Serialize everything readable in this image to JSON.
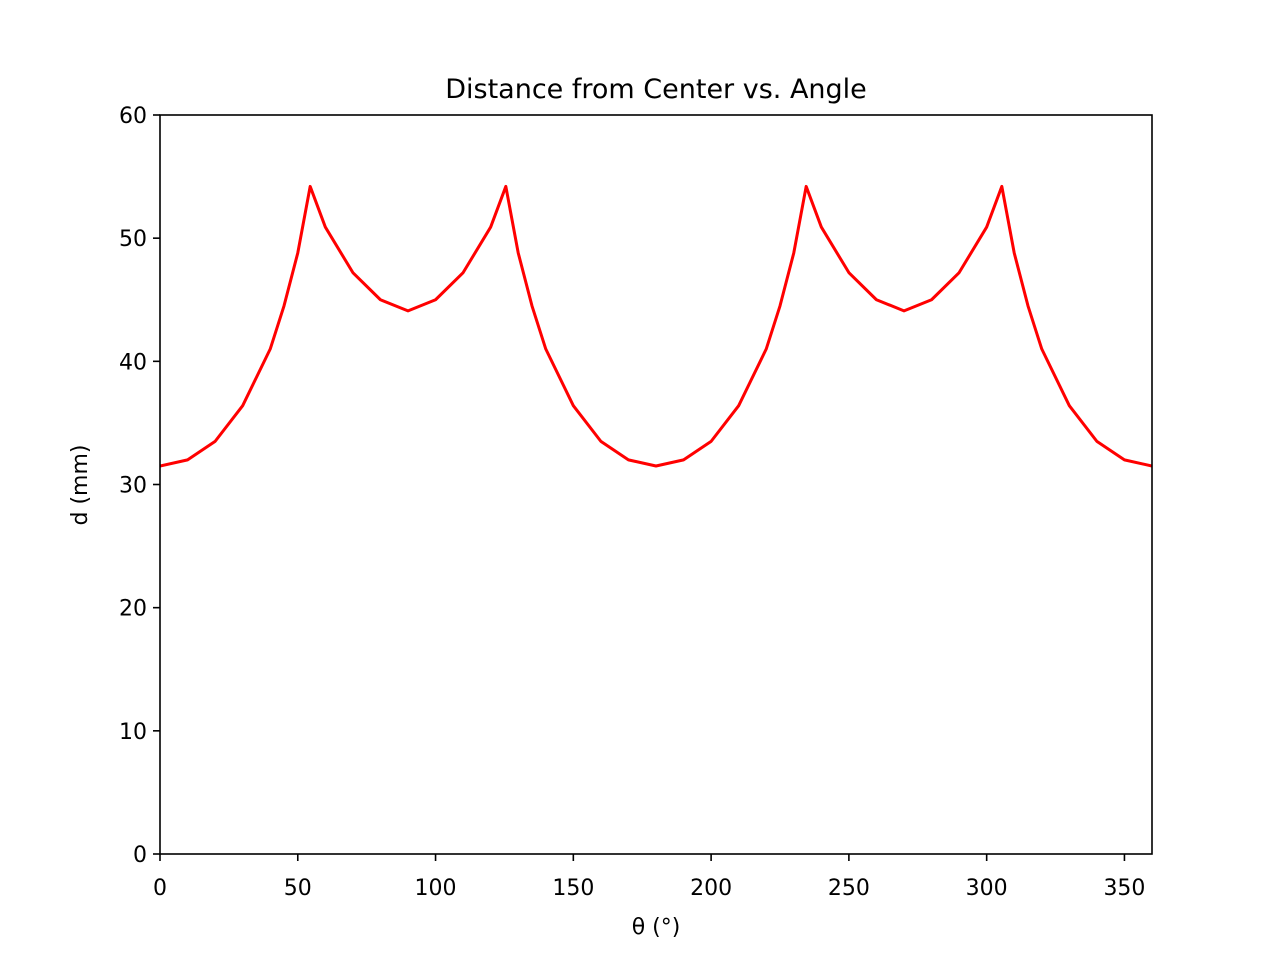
{
  "chart_data": {
    "type": "line",
    "title": "Distance from Center vs. Angle",
    "xlabel": "θ (°)",
    "ylabel": "d (mm)",
    "xlim": [
      0,
      360
    ],
    "ylim": [
      0,
      60
    ],
    "xticks": [
      0,
      50,
      100,
      150,
      200,
      250,
      300,
      350
    ],
    "yticks": [
      0,
      10,
      20,
      30,
      40,
      50,
      60
    ],
    "grid": false,
    "legend": "none",
    "series": [
      {
        "color": "#ff0000",
        "x": [
          0,
          10,
          20,
          30,
          40,
          45,
          50,
          54.5,
          60,
          70,
          80,
          90,
          100,
          110,
          120,
          125.5,
          130,
          135,
          140,
          150,
          160,
          170,
          180,
          190,
          200,
          210,
          220,
          225,
          230,
          234.5,
          240,
          250,
          260,
          270,
          280,
          290,
          300,
          305.5,
          310,
          315,
          320,
          330,
          340,
          350,
          360
        ],
        "y": [
          31.5,
          32.0,
          33.5,
          36.4,
          41.0,
          44.5,
          48.8,
          54.2,
          50.9,
          47.2,
          45.0,
          44.1,
          45.0,
          47.2,
          50.9,
          54.2,
          48.8,
          44.5,
          41.0,
          36.4,
          33.5,
          32.0,
          31.5,
          32.0,
          33.5,
          36.4,
          41.0,
          44.5,
          48.8,
          54.2,
          50.9,
          47.2,
          45.0,
          44.1,
          45.0,
          47.2,
          50.9,
          54.2,
          48.8,
          44.5,
          41.0,
          36.4,
          33.5,
          32.0,
          31.5
        ]
      }
    ]
  }
}
